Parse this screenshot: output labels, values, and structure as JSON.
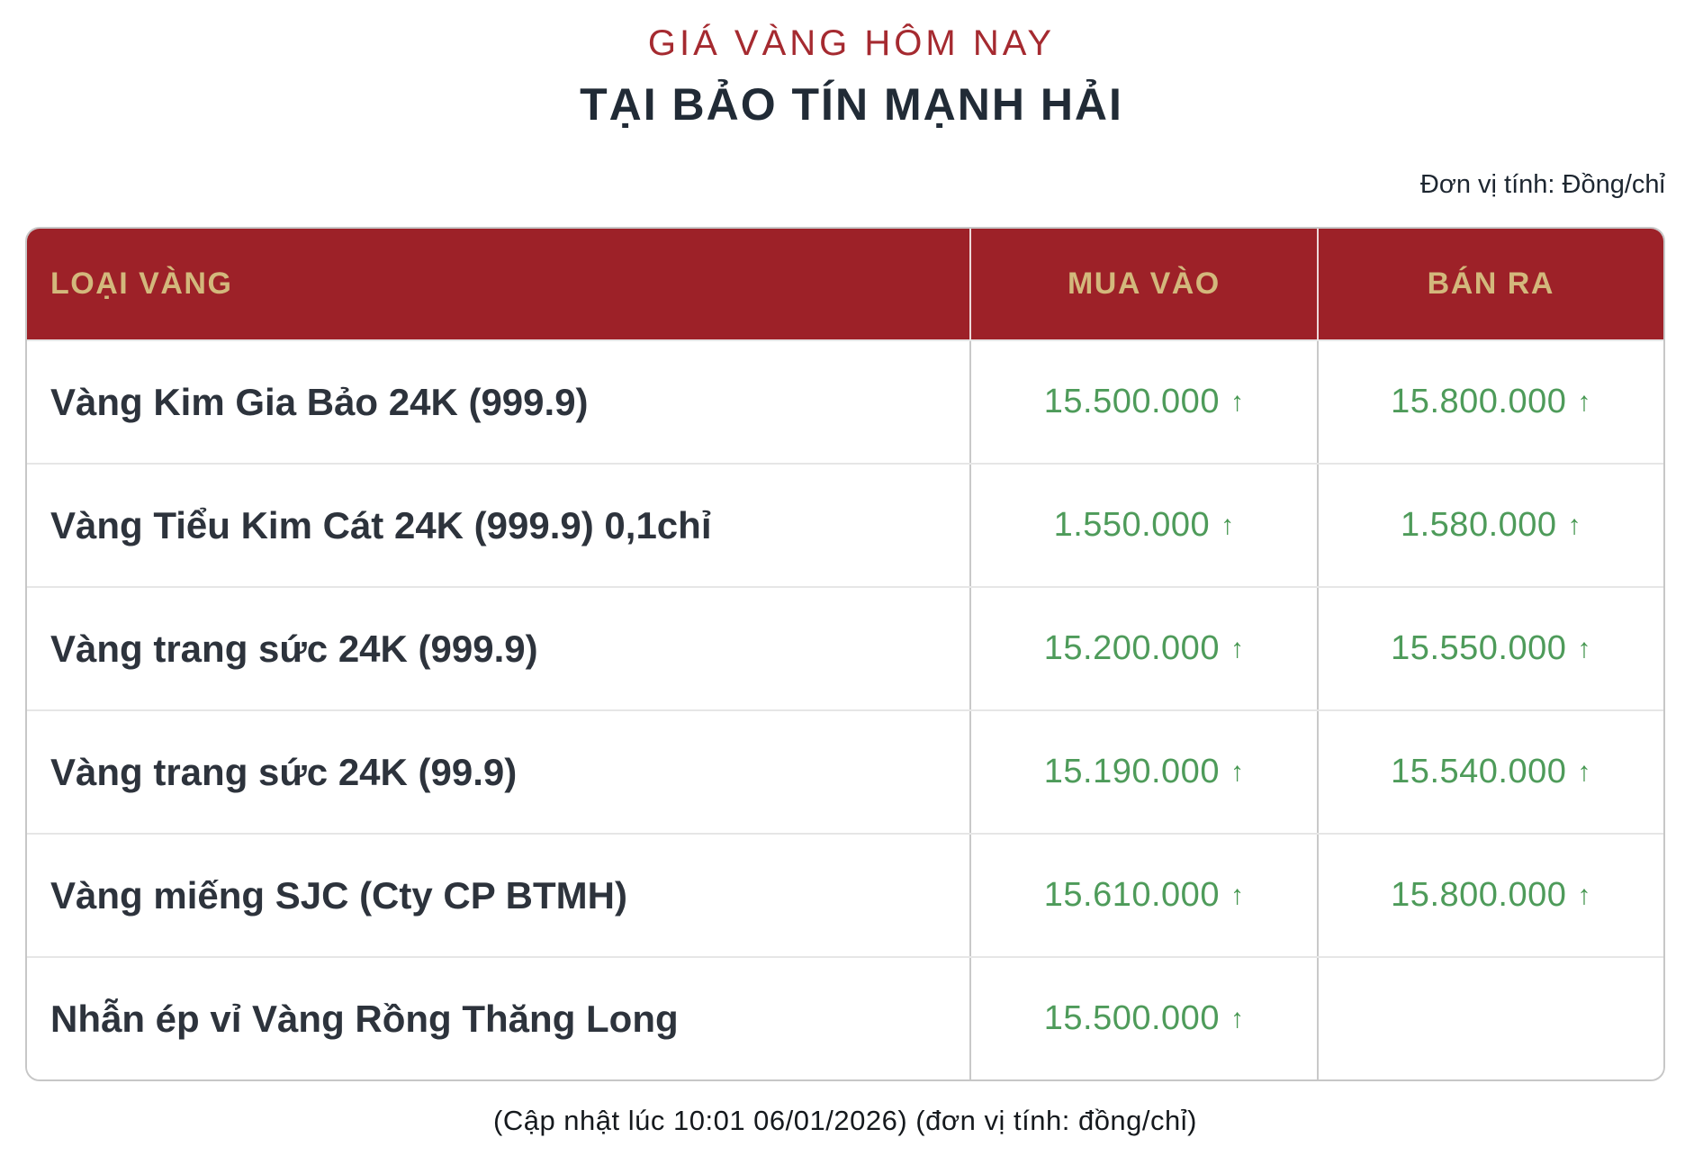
{
  "header": {
    "kicker": "GIÁ VÀNG HÔM NAY",
    "title": "TẠI BẢO TÍN MẠNH HẢI",
    "unit_note": "Đơn vị tính: Đồng/chỉ"
  },
  "table": {
    "columns": {
      "name": "LOẠI VÀNG",
      "buy": "MUA VÀO",
      "sell": "BÁN RA"
    },
    "rows": [
      {
        "name": "Vàng Kim Gia Bảo 24K (999.9)",
        "buy": "15.500.000",
        "buy_arrow": "↑",
        "sell": "15.800.000",
        "sell_arrow": "↑"
      },
      {
        "name": "Vàng Tiểu Kim Cát 24K (999.9) 0,1chỉ",
        "buy": "1.550.000",
        "buy_arrow": "↑",
        "sell": "1.580.000",
        "sell_arrow": "↑"
      },
      {
        "name": "Vàng trang sức 24K (999.9)",
        "buy": "15.200.000",
        "buy_arrow": "↑",
        "sell": "15.550.000",
        "sell_arrow": "↑"
      },
      {
        "name": "Vàng trang sức 24K (99.9)",
        "buy": "15.190.000",
        "buy_arrow": "↑",
        "sell": "15.540.000",
        "sell_arrow": "↑"
      },
      {
        "name": "Vàng miếng SJC (Cty CP BTMH)",
        "buy": "15.610.000",
        "buy_arrow": "↑",
        "sell": "15.800.000",
        "sell_arrow": "↑"
      },
      {
        "name": "Nhẫn ép vỉ Vàng Rồng Thăng Long",
        "buy": "15.500.000",
        "buy_arrow": "↑",
        "sell": "",
        "sell_arrow": ""
      }
    ]
  },
  "footer": {
    "note": "(Cập nhật lúc 10:01 06/01/2026) (đơn vị tính: đồng/chỉ)"
  },
  "colors": {
    "header_background": "#9d2128",
    "header_text_gold": "#d3b87c",
    "kicker_red": "#a52a30",
    "price_green": "#4e9b5a",
    "dark_text": "#212b36"
  },
  "icons": {
    "trend_up": "↑"
  }
}
